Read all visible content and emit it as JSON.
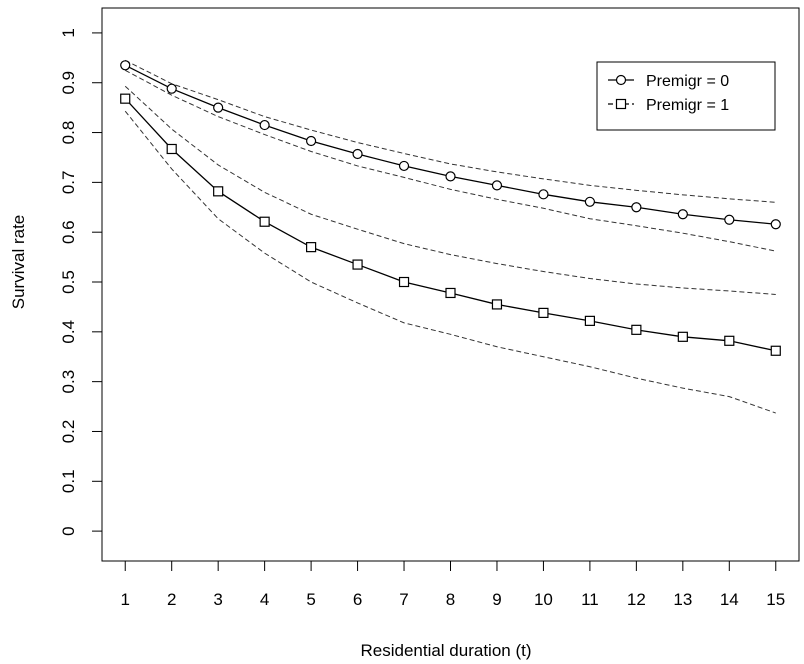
{
  "chart_data": {
    "type": "line",
    "xlabel": "Residential duration (t)",
    "ylabel": "Survival rate",
    "x": [
      1,
      2,
      3,
      4,
      5,
      6,
      7,
      8,
      9,
      10,
      11,
      12,
      13,
      14,
      15
    ],
    "x_ticks": [
      "1",
      "2",
      "3",
      "4",
      "5",
      "6",
      "7",
      "8",
      "9",
      "10",
      "11",
      "12",
      "13",
      "14",
      "15"
    ],
    "y_ticks": [
      "0",
      "0.1",
      "0.2",
      "0.3",
      "0.4",
      "0.5",
      "0.6",
      "0.7",
      "0.8",
      "0.9",
      "1"
    ],
    "xlim": [
      0.5,
      15.5
    ],
    "ylim": [
      -0.06,
      1.05
    ],
    "grid": false,
    "legend": {
      "position": "top-right"
    },
    "series": [
      {
        "name": "Premigr = 0",
        "marker": "circle",
        "line_style": "solid",
        "values": [
          0.935,
          0.888,
          0.85,
          0.815,
          0.783,
          0.757,
          0.733,
          0.712,
          0.694,
          0.676,
          0.661,
          0.65,
          0.636,
          0.625,
          0.616
        ],
        "ci_upper": [
          0.945,
          0.898,
          0.866,
          0.832,
          0.805,
          0.78,
          0.758,
          0.737,
          0.721,
          0.707,
          0.694,
          0.684,
          0.675,
          0.667,
          0.66
        ],
        "ci_lower": [
          0.925,
          0.875,
          0.832,
          0.796,
          0.762,
          0.733,
          0.71,
          0.686,
          0.666,
          0.648,
          0.627,
          0.613,
          0.598,
          0.581,
          0.562
        ]
      },
      {
        "name": "Premigr = 1",
        "marker": "square",
        "line_style": "solid",
        "values": [
          0.868,
          0.767,
          0.682,
          0.621,
          0.57,
          0.535,
          0.5,
          0.478,
          0.455,
          0.438,
          0.422,
          0.404,
          0.39,
          0.382,
          0.362
        ],
        "ci_upper": [
          0.893,
          0.807,
          0.735,
          0.68,
          0.636,
          0.606,
          0.577,
          0.555,
          0.537,
          0.521,
          0.507,
          0.496,
          0.488,
          0.482,
          0.475
        ],
        "ci_lower": [
          0.843,
          0.727,
          0.627,
          0.558,
          0.5,
          0.458,
          0.418,
          0.395,
          0.37,
          0.35,
          0.33,
          0.307,
          0.287,
          0.27,
          0.237
        ]
      }
    ]
  }
}
